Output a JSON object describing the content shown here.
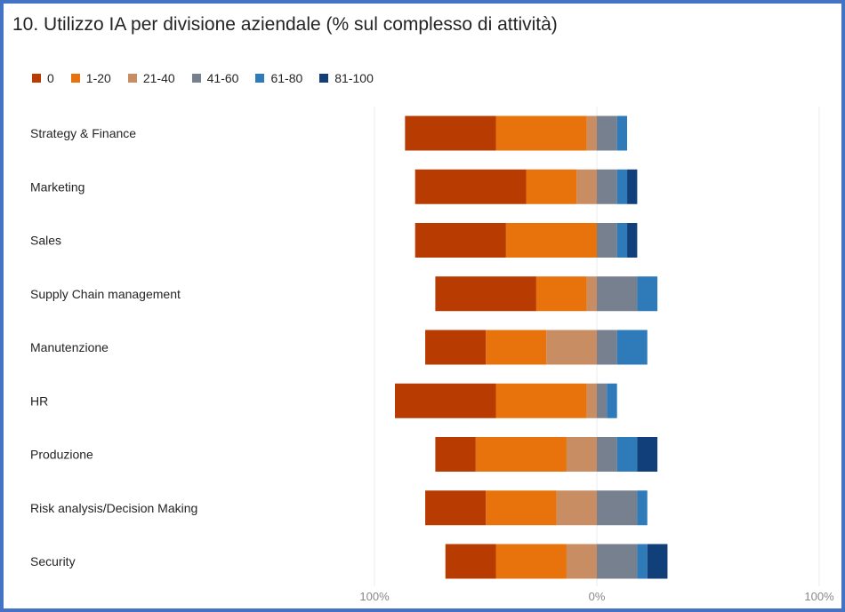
{
  "header": {
    "title": "10.  Utilizzo IA per divisione aziendale (% sul complesso di attività)"
  },
  "chart_data": {
    "type": "bar",
    "orientation": "horizontal",
    "stacking": "diverging",
    "title": "10.  Utilizzo IA per divisione aziendale (% sul complesso di attività)",
    "legend_position": "top-left",
    "grid": true,
    "categories": [
      "Strategy & Finance",
      "Marketing",
      "Sales",
      "Supply Chain management",
      "Manutenzione",
      "HR",
      "Produzione",
      "Risk analysis/Decision Making",
      "Security"
    ],
    "negative_series": [
      "0",
      "1-20",
      "21-40"
    ],
    "xlim": [
      -100,
      100
    ],
    "x_ticks": [
      "100%",
      "0%",
      "100%"
    ],
    "series": [
      {
        "name": "0",
        "color": "#b83b02",
        "values": [
          45,
          55,
          45,
          50,
          30,
          50,
          20,
          30,
          25
        ]
      },
      {
        "name": "1-20",
        "color": "#e8730c",
        "values": [
          45,
          25,
          45,
          25,
          30,
          45,
          45,
          35,
          35
        ]
      },
      {
        "name": "21-40",
        "color": "#c98d64",
        "values": [
          5,
          10,
          0,
          5,
          25,
          5,
          15,
          20,
          15
        ]
      },
      {
        "name": "41-60",
        "color": "#77808f",
        "values": [
          10,
          10,
          10,
          20,
          10,
          5,
          10,
          20,
          20
        ]
      },
      {
        "name": "61-80",
        "color": "#2f7ab8",
        "values": [
          5,
          5,
          5,
          10,
          15,
          5,
          10,
          5,
          5
        ]
      },
      {
        "name": "81-100",
        "color": "#113f7a",
        "values": [
          0,
          5,
          5,
          0,
          0,
          0,
          10,
          0,
          10
        ]
      }
    ]
  }
}
